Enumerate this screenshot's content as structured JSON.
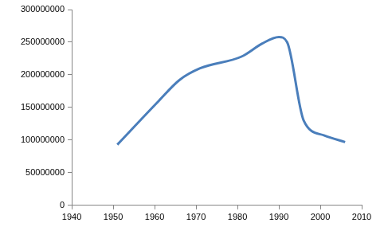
{
  "chart_data": {
    "type": "line",
    "x": [
      1951,
      1961,
      1966,
      1971,
      1981,
      1986,
      1990,
      1992,
      1996,
      2001,
      2006
    ],
    "values": [
      93000000,
      160000000,
      192000000,
      210000000,
      228000000,
      248000000,
      258000000,
      250000000,
      130000000,
      107000000,
      97000000
    ],
    "color": "#4a7ebb",
    "marker": "none",
    "xlim": [
      1940,
      2010
    ],
    "xticks": [
      1940,
      1950,
      1960,
      1970,
      1980,
      1990,
      2000,
      2010
    ],
    "ylim": [
      0,
      300000000
    ],
    "yticks": [
      0,
      50000000,
      100000000,
      150000000,
      200000000,
      250000000,
      300000000
    ],
    "grid": false
  }
}
